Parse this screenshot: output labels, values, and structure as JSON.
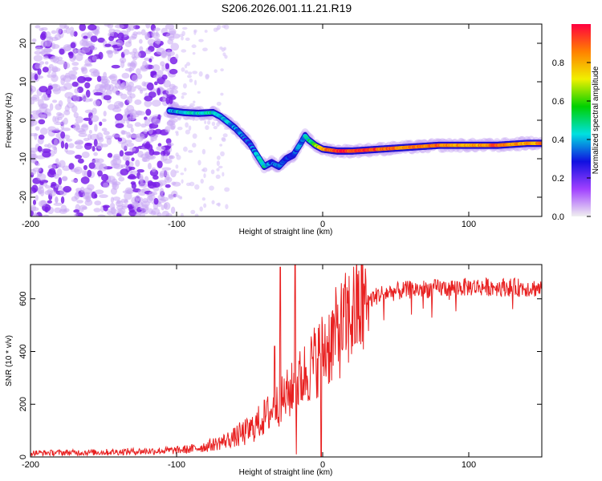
{
  "title": "S206.2026.001.11.21.R19",
  "chart_data": [
    {
      "type": "heatmap",
      "name": "spectrogram",
      "xlabel": "Height of straight line (km)",
      "ylabel": "Frequency (Hz)",
      "xlim": [
        -200,
        150
      ],
      "ylim": [
        -25,
        25
      ],
      "x_ticks": [
        -200,
        -100,
        0,
        100
      ],
      "y_ticks": [
        20,
        10,
        0,
        -10,
        -20
      ],
      "colorbar": {
        "label": "Normalized spectral amplitude",
        "range": [
          0,
          1
        ],
        "ticks": [
          "0.0",
          "0.2",
          "0.4",
          "0.6",
          "0.8"
        ],
        "colors": [
          "#f0f0f0",
          "#a040ff",
          "#1010e0",
          "#00e0e0",
          "#00d000",
          "#f0f000",
          "#ff8000",
          "#ff0040"
        ]
      },
      "ridge": {
        "x": [
          -105,
          -95,
          -85,
          -75,
          -70,
          -60,
          -50,
          -45,
          -40,
          -35,
          -30,
          -25,
          -20,
          -15,
          -12,
          -10,
          -5,
          0,
          10,
          20,
          40,
          60,
          80,
          100,
          120,
          140,
          150
        ],
        "y": [
          2.5,
          2.0,
          1.8,
          2.0,
          1.0,
          -2.0,
          -6.0,
          -9.0,
          -12.0,
          -11.0,
          -12.0,
          -10.0,
          -9.0,
          -6.0,
          -4.0,
          -5.0,
          -6.5,
          -7.5,
          -8.0,
          -8.0,
          -7.5,
          -7.0,
          -6.5,
          -6.5,
          -6.5,
          -6.0,
          -6.0
        ],
        "amplitude": [
          0.35,
          0.45,
          0.45,
          0.45,
          0.4,
          0.35,
          0.3,
          0.4,
          0.45,
          0.35,
          0.3,
          0.3,
          0.3,
          0.35,
          0.4,
          0.45,
          0.6,
          0.8,
          0.95,
          0.95,
          0.9,
          0.85,
          0.9,
          0.8,
          0.9,
          0.8,
          0.85
        ]
      },
      "noise_region_x": [
        -200,
        -100
      ]
    },
    {
      "type": "line",
      "name": "snr",
      "xlabel": "Height of straight line (km)",
      "ylabel": "SNR (10 * v/v)",
      "xlim": [
        -200,
        150
      ],
      "ylim": [
        0,
        730
      ],
      "x_ticks": [
        -200,
        -100,
        0,
        100
      ],
      "y_ticks": [
        0,
        200,
        400,
        600
      ],
      "color": "#e82020",
      "trend": {
        "x": [
          -200,
          -150,
          -100,
          -90,
          -80,
          -70,
          -60,
          -50,
          -40,
          -30,
          -20,
          -10,
          0,
          10,
          20,
          30,
          40,
          60,
          80,
          100,
          120,
          150
        ],
        "y": [
          15,
          18,
          25,
          30,
          40,
          55,
          75,
          100,
          150,
          200,
          260,
          330,
          400,
          470,
          540,
          590,
          620,
          635,
          640,
          645,
          645,
          640
        ]
      },
      "spikes": [
        {
          "x": -29,
          "y": 720
        },
        {
          "x": -19,
          "y": 730
        },
        {
          "x": -33,
          "y": 420
        },
        {
          "x": -1,
          "y": 0
        },
        {
          "x": -18,
          "y": 10
        }
      ]
    }
  ]
}
